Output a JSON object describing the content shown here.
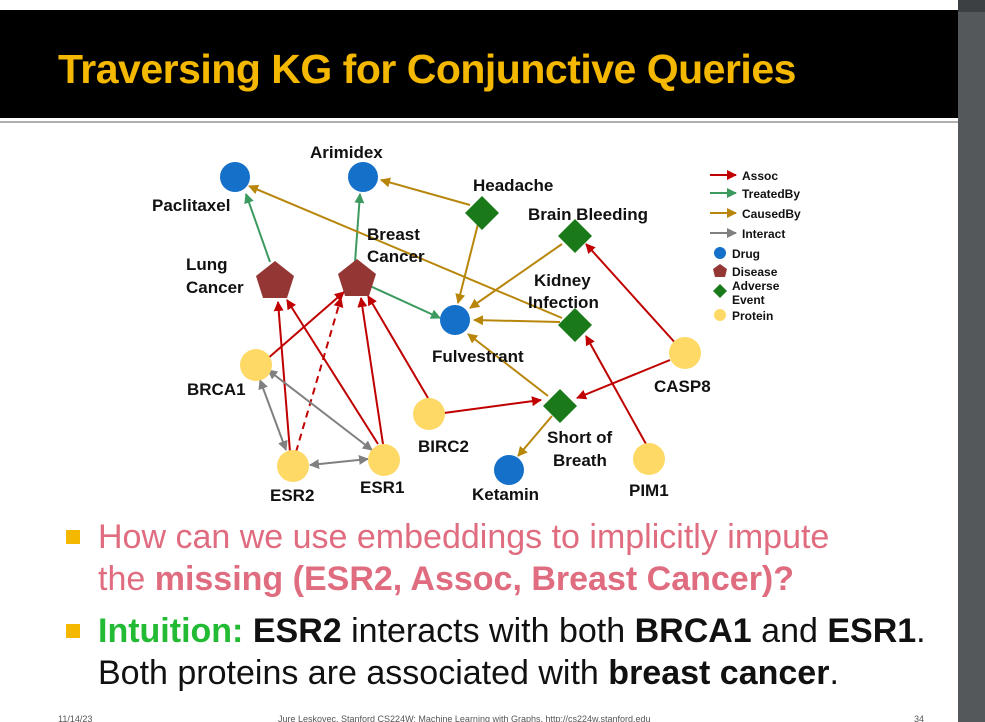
{
  "slide": {
    "title": "Traversing KG for Conjunctive Queries"
  },
  "colors": {
    "title_text": "#f5b800",
    "assoc": "#c00000",
    "treatedby": "#3c9a5f",
    "causedby": "#b8860b",
    "interact": "#808080",
    "drug": "#1470c8",
    "disease": "#943634",
    "adverse_event": "#1a7a1a",
    "protein": "#ffd966"
  },
  "legend": {
    "assoc": "Assoc",
    "treatedby": "TreatedBy",
    "causedby": "CausedBy",
    "interact": "Interact",
    "drug": "Drug",
    "disease": "Disease",
    "adverse_event_line1": "Adverse",
    "adverse_event_line2": "Event",
    "protein": "Protein"
  },
  "nodes": {
    "paclitaxel": "Paclitaxel",
    "arimidex": "Arimidex",
    "headache": "Headache",
    "brain_bleeding": "Brain Bleeding",
    "lung_cancer_1": "Lung",
    "lung_cancer_2": "Cancer",
    "breast_cancer_1": "Breast",
    "breast_cancer_2": "Cancer",
    "kidney_infection_1": "Kidney",
    "kidney_infection_2": "Infection",
    "fulvestrant": "Fulvestrant",
    "brca1": "BRCA1",
    "casp8": "CASP8",
    "birc2": "BIRC2",
    "short_of_breath_1": "Short of",
    "short_of_breath_2": "Breath",
    "esr2": "ESR2",
    "esr1": "ESR1",
    "ketamin": "Ketamin",
    "pim1": "PIM1"
  },
  "bullets": {
    "b1_line1": "How can we use embeddings to implicitly impute",
    "b1_line2_a": "the ",
    "b1_line2_b": "missing (ESR2, Assoc, Breast Cancer)?",
    "b2_line1_a": "Intuition:",
    "b2_line1_b": " ",
    "b2_line1_c": "ESR2",
    "b2_line1_d": " interacts with both ",
    "b2_line1_e": "BRCA1",
    "b2_line1_f": " and ",
    "b2_line1_g": "ESR1",
    "b2_line1_h": ".",
    "b2_line2_a": "Both proteins are associated with ",
    "b2_line2_b": "breast cancer",
    "b2_line2_c": "."
  },
  "footer": {
    "date": "11/14/23",
    "credit": "Jure Leskovec, Stanford CS224W: Machine Learning with Graphs, http://cs224w.stanford.edu",
    "page": "34"
  }
}
